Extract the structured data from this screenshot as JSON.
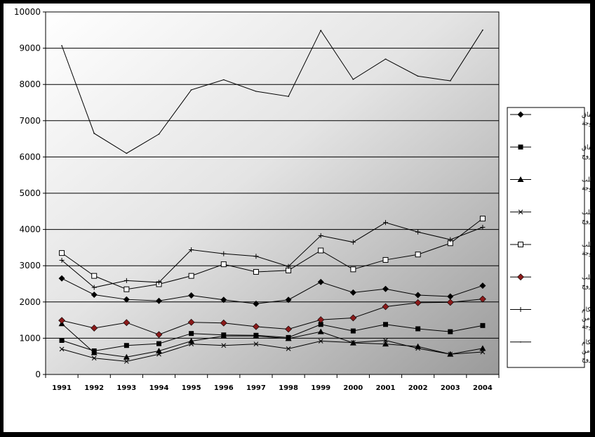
{
  "chart_data": {
    "type": "line",
    "title": "",
    "xlabel": "",
    "ylabel": "",
    "ylim": [
      0,
      10000
    ],
    "yticks": [
      0,
      1000,
      2000,
      3000,
      4000,
      5000,
      6000,
      7000,
      8000,
      9000,
      10000
    ],
    "categories": [
      "1991",
      "1992",
      "1993",
      "1994",
      "1995",
      "1996",
      "1997",
      "1998",
      "1999",
      "2000",
      "2001",
      "2002",
      "2003",
      "2004"
    ],
    "grid": "horizontal",
    "legend_position": "right",
    "background": "gradient-gray",
    "series": [
      {
        "name": "اتفاق بالاتفاق بطلب من الزوجة",
        "marker": "diamond",
        "color": "#000000",
        "values": [
          2650,
          2200,
          2070,
          2030,
          2180,
          2060,
          1950,
          2060,
          2550,
          2260,
          2360,
          2190,
          2150,
          2450
        ]
      },
      {
        "name": "اتفاق بالاتفاق بطلب من الزوج",
        "marker": "square",
        "color": "#000000",
        "values": [
          940,
          650,
          800,
          850,
          1130,
          1090,
          1080,
          1020,
          1380,
          1200,
          1380,
          1260,
          1180,
          1350
        ]
      },
      {
        "name": "اتفاق للضرر بطلب من الزوجة",
        "marker": "triangle",
        "color": "#000000",
        "values": [
          1400,
          600,
          480,
          650,
          920,
          1060,
          1060,
          990,
          1180,
          870,
          840,
          770,
          560,
          720
        ]
      },
      {
        "name": "اتفاق للضرر بطلب من الزوج",
        "marker": "x",
        "color": "#000000",
        "values": [
          700,
          450,
          360,
          560,
          840,
          800,
          840,
          710,
          920,
          880,
          940,
          720,
          560,
          620
        ]
      },
      {
        "name": "اتفاق لعلة بطلب من الزوجة",
        "marker": "open-square",
        "color": "#000000",
        "values": [
          3350,
          2720,
          2350,
          2490,
          2720,
          3040,
          2830,
          2870,
          3420,
          2900,
          3160,
          3310,
          3620,
          4300
        ]
      },
      {
        "name": "اتفاق لعلة بطلب من الزوج",
        "marker": "red-diamond",
        "color": "#8b1a1a",
        "values": [
          1490,
          1280,
          1430,
          1100,
          1440,
          1420,
          1320,
          1250,
          1510,
          1560,
          1870,
          1980,
          1990,
          2080
        ]
      },
      {
        "name": "مجموع أحكام اتفاق بطلب من الزوجة",
        "marker": "plus",
        "color": "#000000",
        "values": [
          3150,
          2400,
          2590,
          2540,
          3440,
          3330,
          3260,
          2980,
          3830,
          3650,
          4190,
          3930,
          3720,
          4060
        ]
      },
      {
        "name": "مجموع أحكام اتفاق بطلب من الزوج",
        "marker": "none",
        "color": "#000000",
        "values": [
          9070,
          6650,
          6100,
          6630,
          7850,
          8130,
          7810,
          7670,
          9490,
          8140,
          8700,
          8230,
          8100,
          9500
        ]
      }
    ]
  }
}
